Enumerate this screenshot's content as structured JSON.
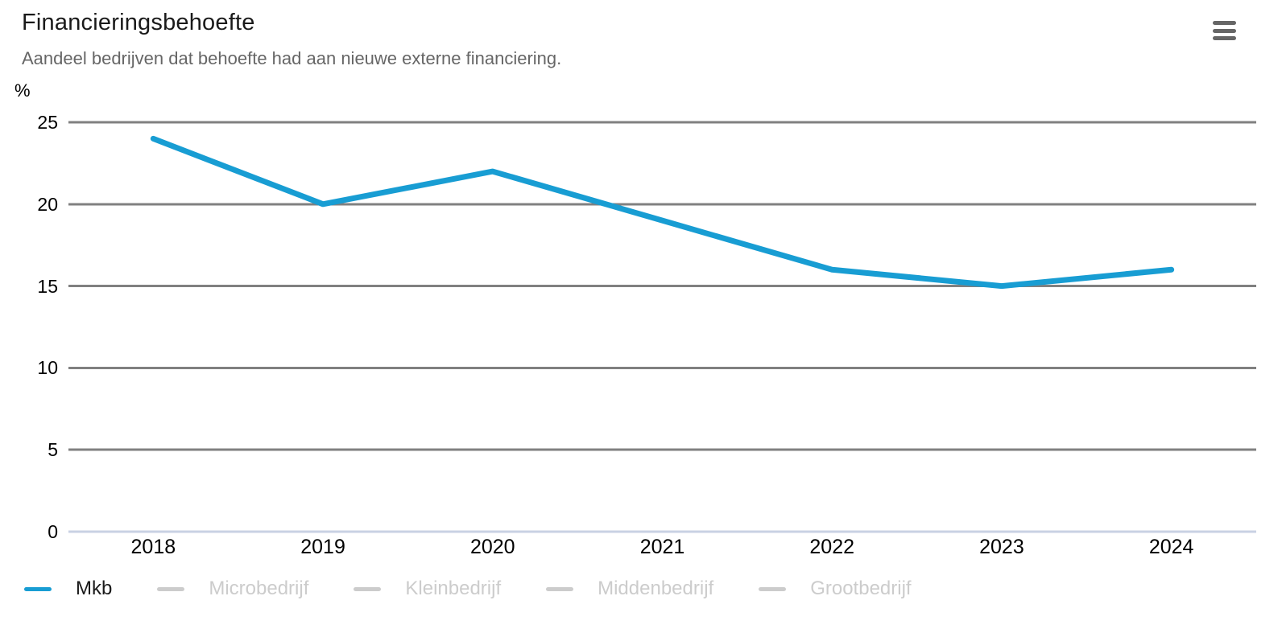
{
  "icons": {
    "context_menu": "hamburger-menu-icon"
  },
  "chart_data": {
    "type": "line",
    "title": "Financieringsbehoefte",
    "subtitle": "Aandeel bedrijven dat behoefte had aan nieuwe externe financiering.",
    "ylabel": "%",
    "xlabel": "",
    "categories": [
      "2018",
      "2019",
      "2020",
      "2021",
      "2022",
      "2023",
      "2024"
    ],
    "ylim": [
      0,
      25
    ],
    "yticks": [
      0,
      5,
      10,
      15,
      20,
      25
    ],
    "grid": true,
    "legend_position": "bottom",
    "series": [
      {
        "name": "Mkb",
        "values": [
          24,
          20,
          22,
          19,
          16,
          15,
          16
        ],
        "color": "#189dd3",
        "enabled": true
      },
      {
        "name": "Microbedrijf",
        "values": [],
        "color": "#cccccc",
        "enabled": false
      },
      {
        "name": "Kleinbedrijf",
        "values": [],
        "color": "#cccccc",
        "enabled": false
      },
      {
        "name": "Middenbedrijf",
        "values": [],
        "color": "#cccccc",
        "enabled": false
      },
      {
        "name": "Grootbedrijf",
        "values": [],
        "color": "#cccccc",
        "enabled": false
      }
    ],
    "colors": {
      "accent": "#189dd3",
      "gridline": "#808080",
      "zero_line": "#c9d1e3",
      "disabled": "#cccccc",
      "enabled_text": "#1a1a1a"
    }
  }
}
